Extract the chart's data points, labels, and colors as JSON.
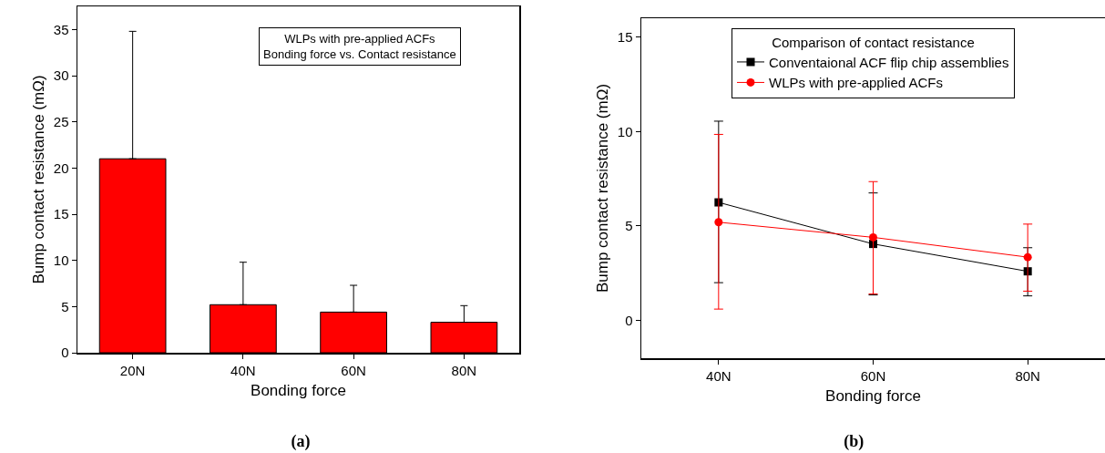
{
  "chart_data": [
    {
      "type": "bar",
      "title": "(a)",
      "xlabel": "Bonding force",
      "ylabel": "Bump contact resistance (mΩ)",
      "categories": [
        "20N",
        "40N",
        "60N",
        "80N"
      ],
      "values": [
        21,
        5.2,
        4.4,
        3.3
      ],
      "color": "#ff0000",
      "errors": [
        [
          21,
          34.8
        ],
        [
          5.2,
          9.8
        ],
        [
          4.4,
          7.3
        ],
        [
          3.3,
          5.1
        ]
      ],
      "ylim": [
        0,
        37.5
      ],
      "yticks": [
        0,
        5,
        10,
        15,
        20,
        25,
        30,
        35
      ],
      "grid": false,
      "legend": false,
      "annotations": [
        "WLPs with pre-applied ACFs\nBonding force vs. Contact resistance"
      ]
    },
    {
      "type": "line",
      "title": "(b)",
      "xlabel": "Bonding force",
      "ylabel": "Bump contact resistance (mΩ)",
      "legend_title": "Comparison of contact resistance",
      "categories": [
        "40N",
        "60N",
        "80N"
      ],
      "ylim": [
        -2,
        16
      ],
      "yticks": [
        0,
        5,
        10,
        15
      ],
      "grid": false,
      "legend": "top",
      "line_style": "solid",
      "series": [
        {
          "name": "Conventaional ACF flip chip assemblies",
          "color": "#000000",
          "marker": "square",
          "values": [
            6.25,
            4.05,
            2.6
          ],
          "errors": [
            [
              2.0,
              10.55
            ],
            [
              1.35,
              6.75
            ],
            [
              1.3,
              3.85
            ]
          ]
        },
        {
          "name": "WLPs with pre-applied ACFs",
          "color": "#ff0000",
          "marker": "circle",
          "values": [
            5.2,
            4.4,
            3.35
          ],
          "errors": [
            [
              0.6,
              9.85
            ],
            [
              1.4,
              7.35
            ],
            [
              1.55,
              5.1
            ]
          ]
        }
      ]
    }
  ]
}
